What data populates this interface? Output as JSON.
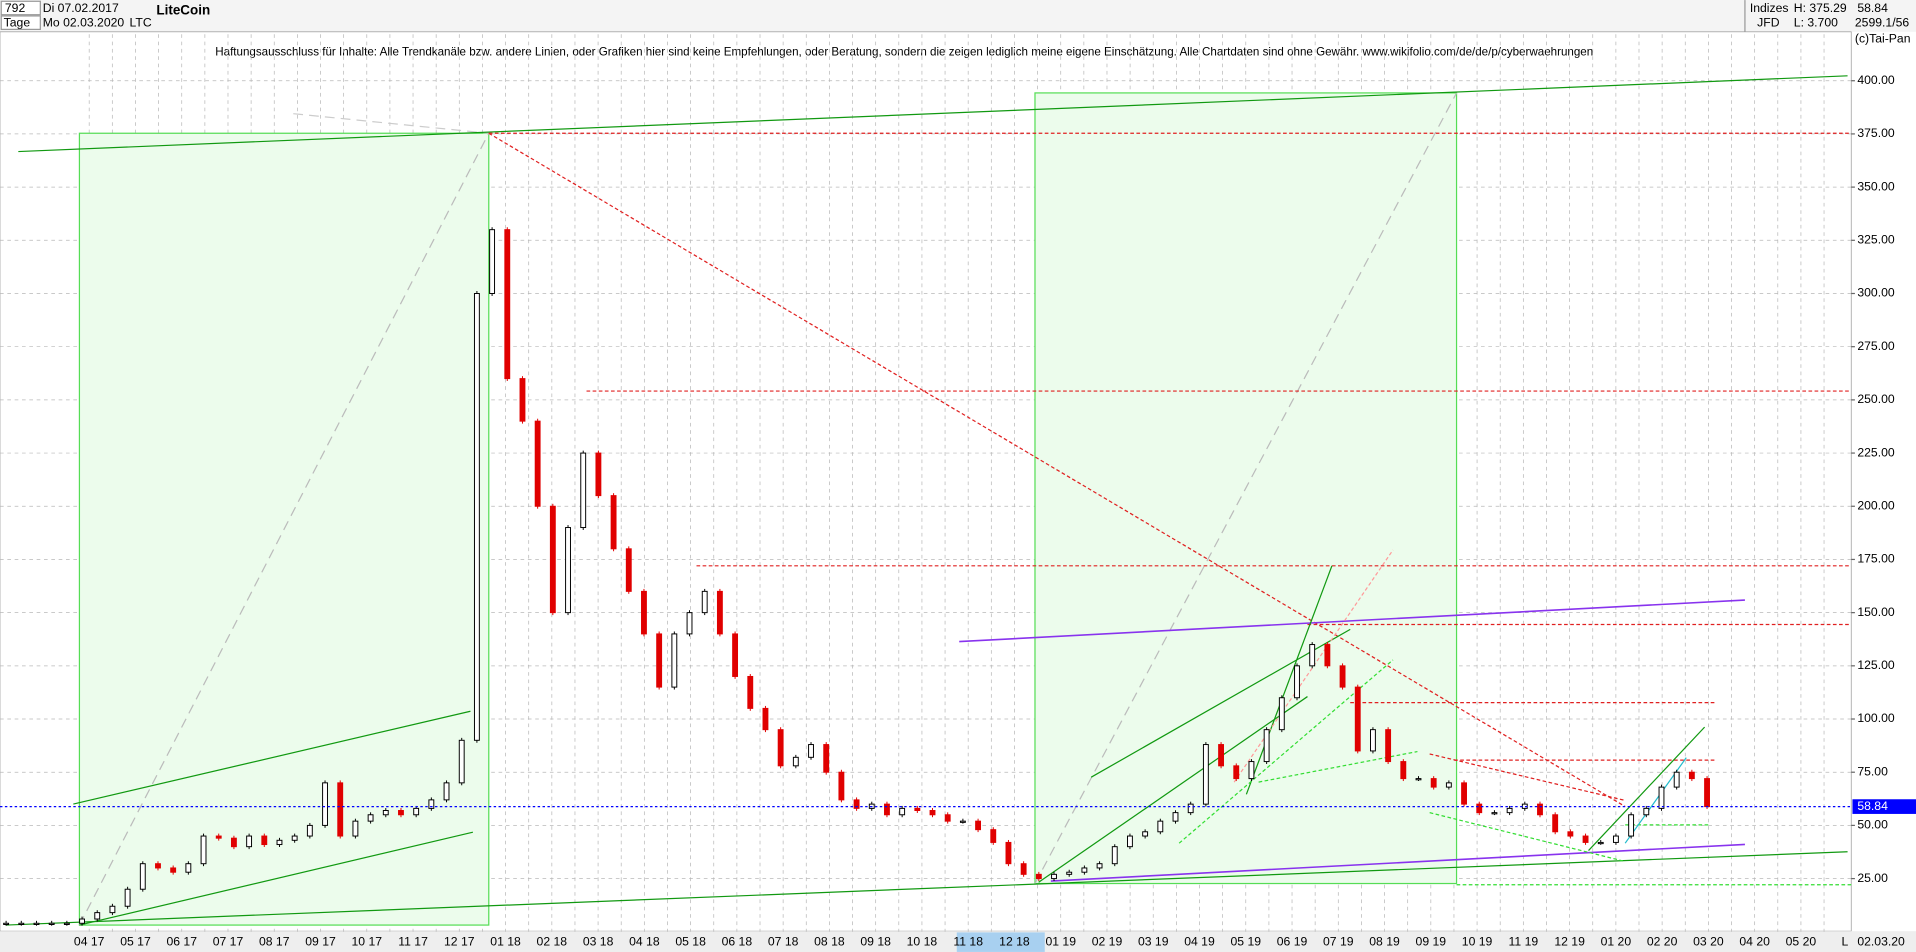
{
  "header": {
    "count": "792",
    "period": "Tage",
    "start": "Di 07.02.2017",
    "end": "Mo 02.03.2020",
    "title": "LiteCoin",
    "symbol": "LTC",
    "index_label": "Indizes",
    "source": "JFD",
    "high": "H: 375.29",
    "low": "L: 3.700",
    "last": "58.84",
    "info": "2599.1/56",
    "copyright": "(c)Tai-Pan",
    "disclaimer": "Haftungsausschluss für Inhalte: Alle Trendkanäle bzw. andere Linien, oder Grafiken hier sind keine Empfehlungen, oder Beratung, sondern die zeigen lediglich meine eigene Einschätzung. Alle Chartdaten sind ohne Gewähr.  www.wikifolio.com/de/de/p/cyberwaehrungen"
  },
  "chart_data": {
    "type": "candlestick",
    "values": [
      4,
      4,
      4,
      4,
      4,
      6,
      9,
      12,
      20,
      32,
      30,
      28,
      32,
      45,
      44,
      40,
      45,
      41,
      43,
      45,
      50,
      70,
      45,
      52,
      55,
      57,
      55,
      58,
      62,
      70,
      90,
      300,
      330,
      260,
      240,
      200,
      150,
      190,
      225,
      205,
      180,
      160,
      140,
      115,
      140,
      150,
      160,
      140,
      120,
      105,
      95,
      78,
      82,
      88,
      75,
      62,
      58,
      60,
      55,
      58,
      57,
      55,
      52,
      52,
      48,
      42,
      32,
      27,
      25,
      27,
      28,
      30,
      32,
      40,
      45,
      47,
      52,
      56,
      60,
      88,
      78,
      72,
      80,
      95,
      110,
      125,
      135,
      125,
      115,
      85,
      95,
      80,
      72,
      72,
      68,
      70,
      60,
      56,
      56,
      58,
      60,
      55,
      47,
      45,
      42,
      42,
      45,
      55,
      58,
      68,
      75,
      72,
      58.84
    ],
    "up_color": "#000000",
    "down_color": "#e00000",
    "last_price_color": "#0000ff",
    "x_labels": [
      "04 17",
      "05 17",
      "06 17",
      "07 17",
      "08 17",
      "09 17",
      "10 17",
      "11 17",
      "12 17",
      "01 18",
      "02 18",
      "03 18",
      "04 18",
      "05 18",
      "06 18",
      "07 18",
      "08 18",
      "09 18",
      "10 18",
      "11 18",
      "12 18",
      "01 19",
      "02 19",
      "03 19",
      "04 19",
      "05 19",
      "06 19",
      "07 19",
      "08 19",
      "09 19",
      "10 19",
      "11 19",
      "12 19",
      "01 20",
      "02 20",
      "03 20",
      "04 20",
      "05 20"
    ],
    "x_end_label": "02.03.20",
    "scale_mode": "L",
    "ylim": [
      0,
      420
    ],
    "yticks": [
      {
        "value": 25,
        "label": "25.00"
      },
      {
        "value": 50,
        "label": "50.00"
      },
      {
        "value": 75,
        "label": "75.00"
      },
      {
        "value": 100,
        "label": "100.00"
      },
      {
        "value": 125,
        "label": "125.00"
      },
      {
        "value": 150,
        "label": "150.00"
      },
      {
        "value": 175,
        "label": "175.00"
      },
      {
        "value": 200,
        "label": "200.00"
      },
      {
        "value": 225,
        "label": "225.00"
      },
      {
        "value": 250,
        "label": "250.00"
      },
      {
        "value": 275,
        "label": "275.00"
      },
      {
        "value": 300,
        "label": "300.00"
      },
      {
        "value": 325,
        "label": "325.00"
      },
      {
        "value": 350,
        "label": "350.00"
      },
      {
        "value": 375,
        "label": "375.00"
      },
      {
        "value": 400,
        "label": "400.00"
      }
    ],
    "grid": true
  }
}
